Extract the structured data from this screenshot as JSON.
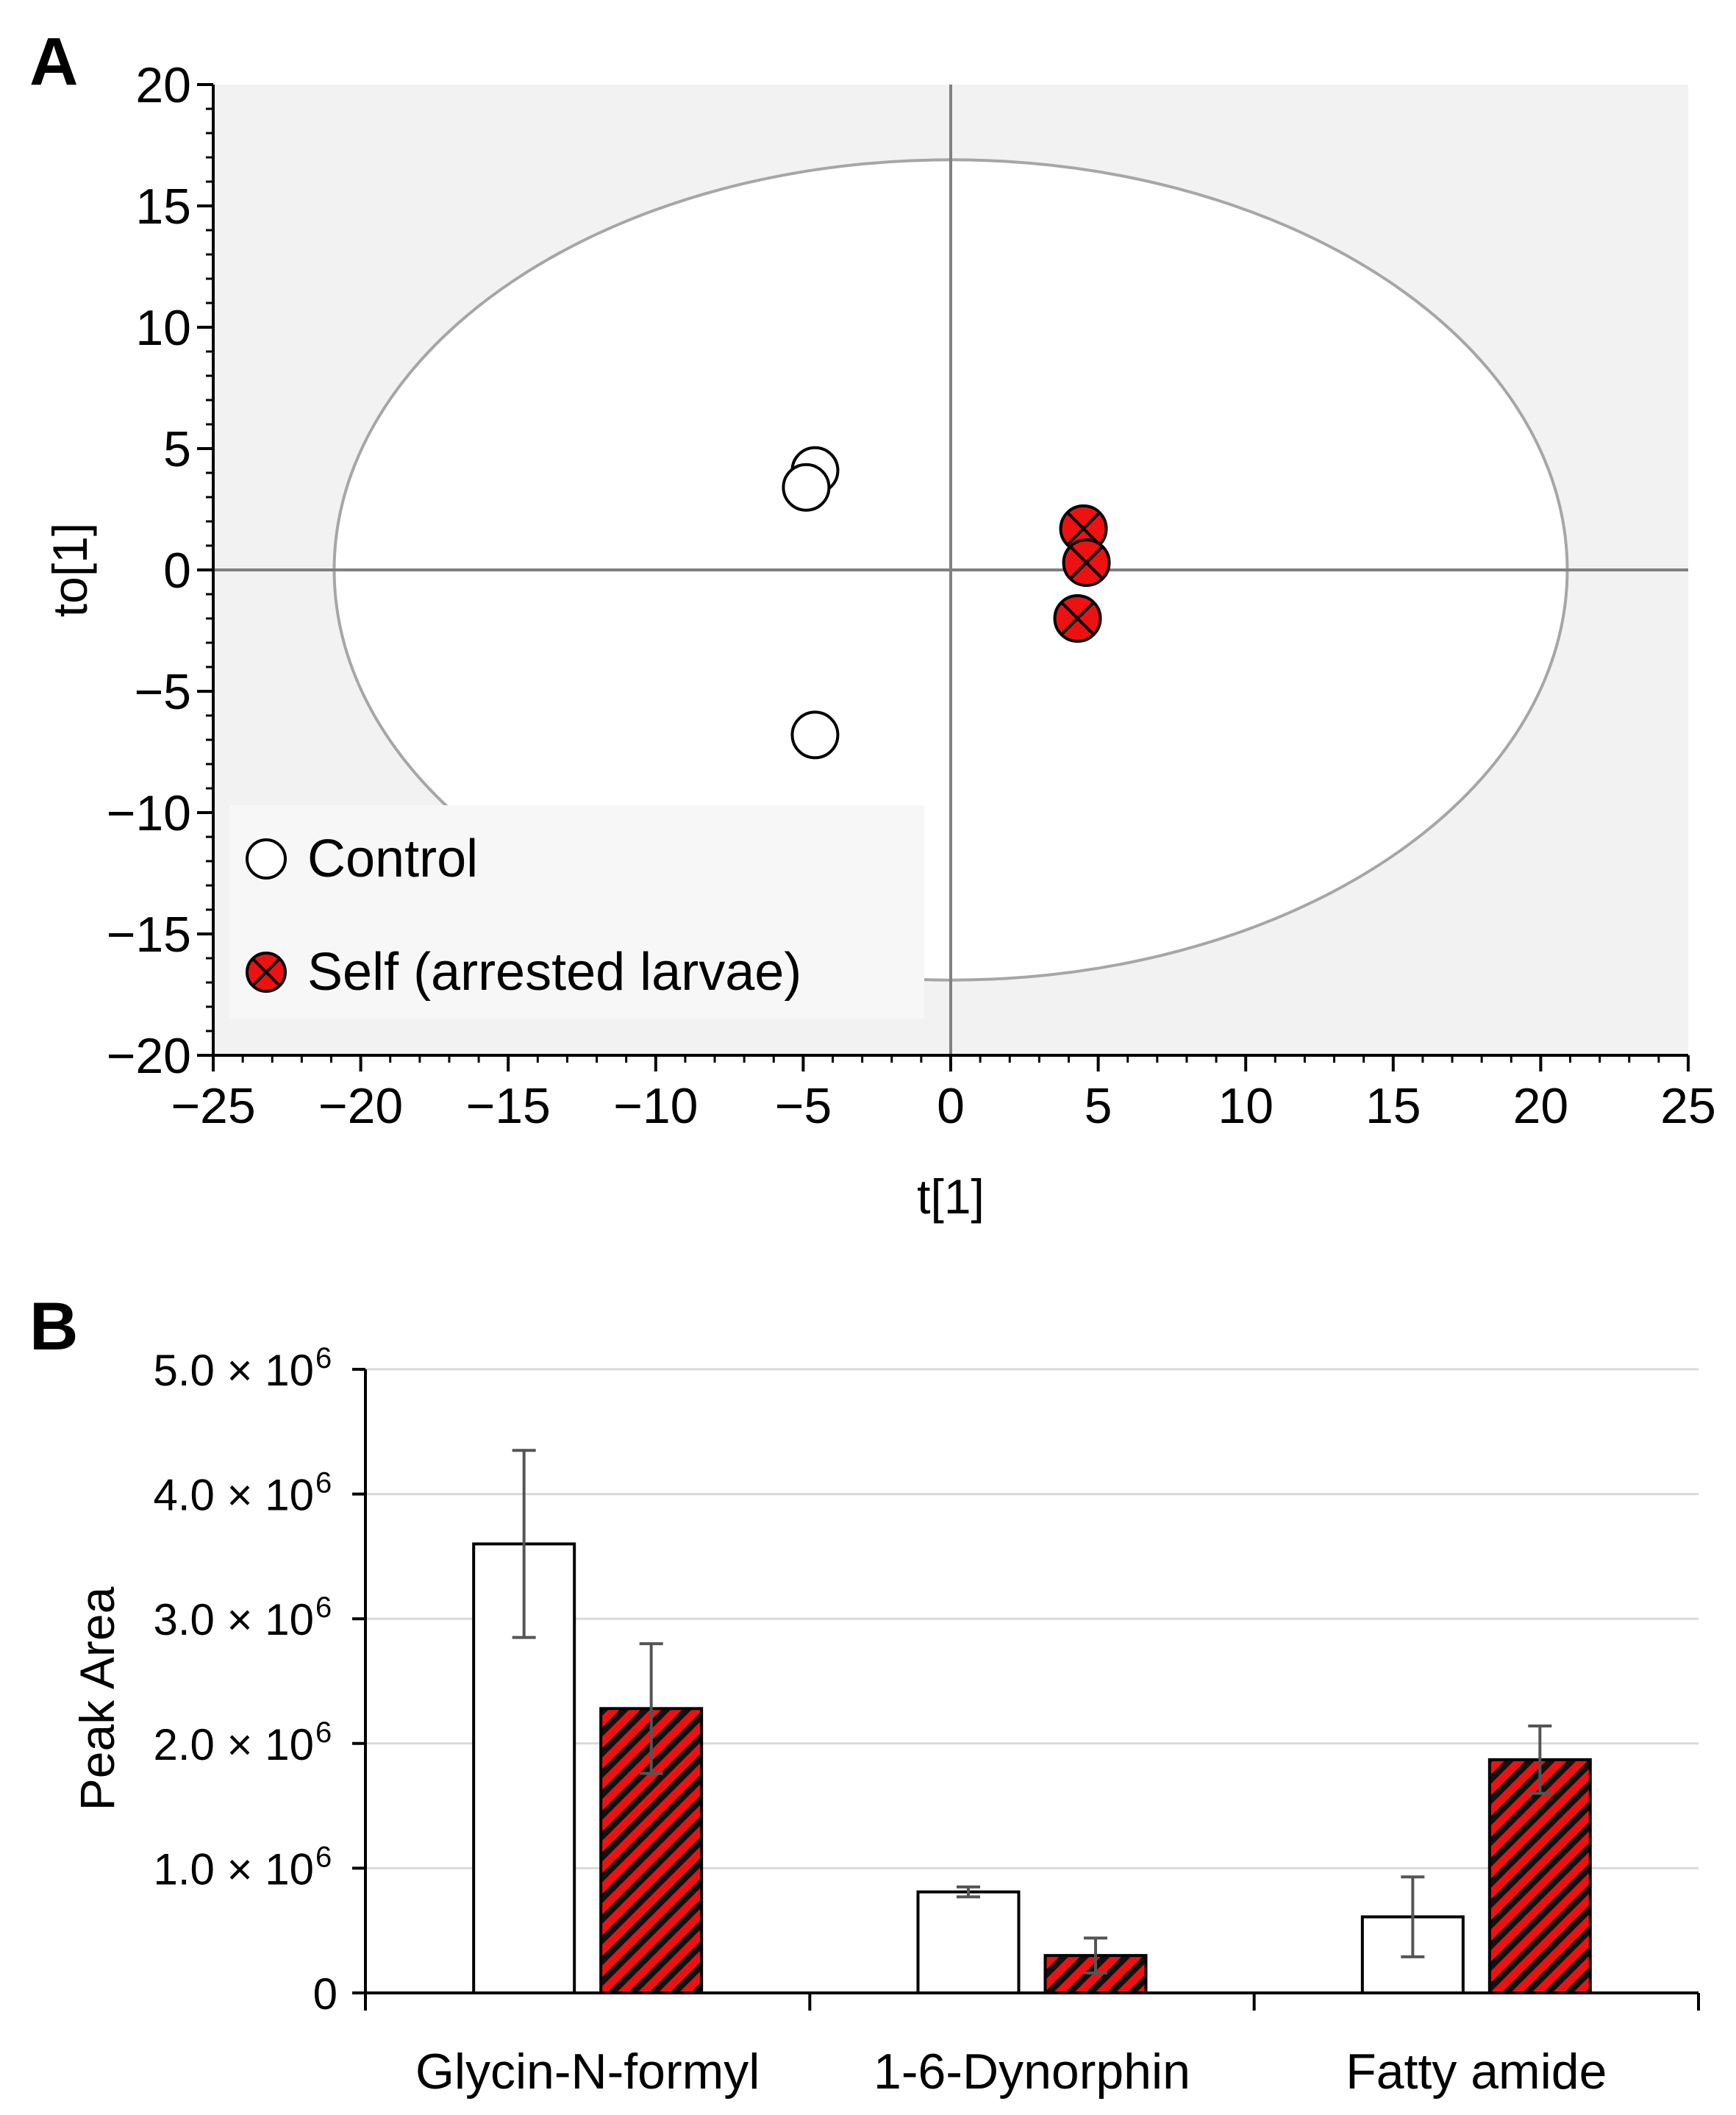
{
  "panels": {
    "a_label": "A",
    "b_label": "B"
  },
  "colors": {
    "self_fill": "#ee1111",
    "control_fill": "#ffffff",
    "plot_bg": "#f2f2f2",
    "ellipse": "#a6a6a6",
    "axis_line": "#808080",
    "error_bar": "#555555",
    "gridline": "#d9d9d9"
  },
  "chart_data": [
    {
      "type": "scatter",
      "xlabel": "t[1]",
      "ylabel": "to[1]",
      "xlim": [
        -25,
        25
      ],
      "ylim": [
        -20,
        20
      ],
      "xticks": [
        -25,
        -20,
        -15,
        -10,
        -5,
        0,
        5,
        10,
        15,
        20,
        25
      ],
      "yticks": [
        20,
        15,
        10,
        5,
        0,
        -5,
        -10,
        -15,
        -20
      ],
      "xtick_labels": [
        "−25",
        "−20",
        "−15",
        "−10",
        "−5",
        "0",
        "5",
        "10",
        "15",
        "20",
        "25"
      ],
      "ytick_labels": [
        "20",
        "15",
        "10",
        "5",
        "0",
        "−5",
        "−10",
        "−15",
        "−20"
      ],
      "ellipse": {
        "rx": 20.9,
        "ry": 16.9
      },
      "grid": false,
      "legend_position": "bottom-left",
      "series": [
        {
          "name": "Control",
          "marker": "open-circle",
          "points": [
            [
              -4.6,
              4.1
            ],
            [
              -4.9,
              3.4
            ],
            [
              -4.6,
              -6.8
            ]
          ]
        },
        {
          "name": "Self (arrested larvae)",
          "marker": "red-circle-x",
          "points": [
            [
              4.5,
              1.7
            ],
            [
              4.6,
              0.3
            ],
            [
              4.3,
              -2.0
            ]
          ]
        }
      ]
    },
    {
      "type": "bar",
      "ylabel": "Peak Area",
      "ylim": [
        0,
        5000000
      ],
      "ytick_labels": [
        "0",
        "1.0 × 10",
        "2.0 × 10",
        "3.0 × 10",
        "4.0 × 10",
        "5.0 × 10"
      ],
      "ytick_exponent": "6",
      "ytick_values": [
        0,
        1000000,
        2000000,
        3000000,
        4000000,
        5000000
      ],
      "grid": true,
      "categories": [
        "Glycin-N-formyl",
        "1-6-Dynorphin",
        "Fatty amide"
      ],
      "series": [
        {
          "name": "Control",
          "pattern": "plain-white",
          "values": [
            3600000,
            810000,
            610000
          ],
          "errors": [
            750000,
            40000,
            320000
          ]
        },
        {
          "name": "Self (arrested larvae)",
          "pattern": "red-black-hatch",
          "values": [
            2280000,
            300000,
            1870000
          ],
          "errors": [
            520000,
            140000,
            270000
          ]
        }
      ]
    }
  ]
}
